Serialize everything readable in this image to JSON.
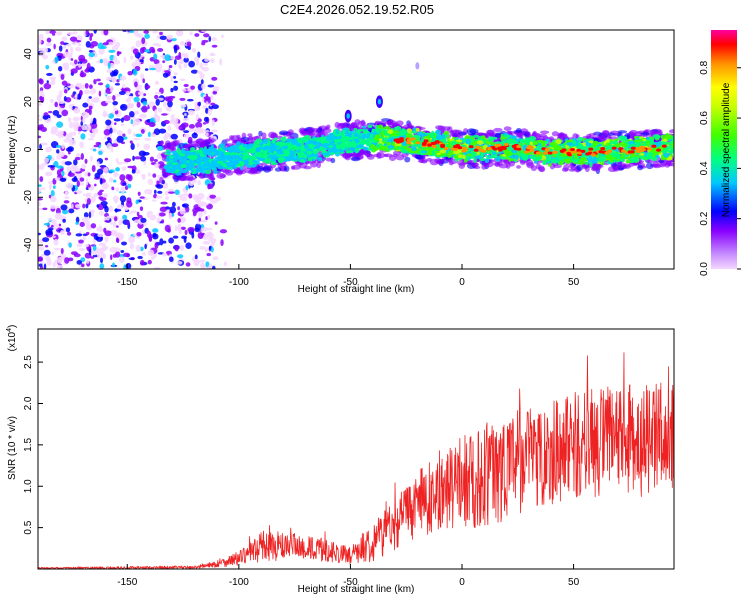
{
  "title": "C2E4.2026.052.19.52.R05",
  "chart_data": [
    {
      "type": "heatmap",
      "name": "spectrogram",
      "xlabel": "Height of straight line (km)",
      "ylabel": "Frequency (Hz)",
      "xlim": [
        -190,
        95
      ],
      "ylim": [
        -50,
        50
      ],
      "xticks": [
        -150,
        -100,
        -50,
        0,
        50
      ],
      "yticks": [
        -40,
        -20,
        0,
        20,
        40
      ],
      "noise_region": [
        -190,
        -110
      ],
      "ridge_center_hz": [
        [
          -130,
          -5
        ],
        [
          -110,
          -4
        ],
        [
          -90,
          -1
        ],
        [
          -70,
          0
        ],
        [
          -55,
          3
        ],
        [
          -40,
          5
        ],
        [
          -30,
          4
        ],
        [
          -10,
          2
        ],
        [
          0,
          0
        ],
        [
          20,
          1
        ],
        [
          40,
          -1
        ],
        [
          60,
          -1
        ],
        [
          80,
          0
        ],
        [
          95,
          1
        ]
      ],
      "features": [
        {
          "x": -51,
          "y": 14,
          "label": "spike"
        },
        {
          "x": -37,
          "y": 20,
          "label": "spike"
        },
        {
          "x": -20,
          "y": 35,
          "label": "dot"
        }
      ],
      "colorbar": {
        "label": "Normalized spectral amplitude",
        "range": [
          0.0,
          0.95
        ],
        "ticks": [
          0.0,
          0.2,
          0.4,
          0.6,
          0.8
        ],
        "colors": [
          "#f4d6ff",
          "#8800ff",
          "#0000ff",
          "#00c8ff",
          "#00ff80",
          "#40ff00",
          "#c8ff00",
          "#ffff00",
          "#ff9000",
          "#ff0000",
          "#ff00a0"
        ]
      }
    },
    {
      "type": "line",
      "name": "snr",
      "xlabel": "Height of straight line (km)",
      "ylabel": "SNR (10 * v/v)",
      "scale_label": "(x10",
      "scale_exponent": "4",
      "xlim": [
        -190,
        95
      ],
      "ylim": [
        0,
        2.9
      ],
      "xticks": [
        -150,
        -100,
        -50,
        0,
        50
      ],
      "yticks": [
        0.5,
        1.0,
        1.5,
        2.0,
        2.5
      ],
      "color": "#ee2222",
      "envelope": [
        {
          "x": -190,
          "mean": 0.01,
          "amp": 0.01
        },
        {
          "x": -120,
          "mean": 0.02,
          "amp": 0.02
        },
        {
          "x": -110,
          "mean": 0.06,
          "amp": 0.04
        },
        {
          "x": -100,
          "mean": 0.13,
          "amp": 0.09
        },
        {
          "x": -96,
          "mean": 0.18,
          "amp": 0.1
        },
        {
          "x": -90,
          "mean": 0.28,
          "amp": 0.2
        },
        {
          "x": -75,
          "mean": 0.27,
          "amp": 0.16
        },
        {
          "x": -60,
          "mean": 0.22,
          "amp": 0.14
        },
        {
          "x": -50,
          "mean": 0.16,
          "amp": 0.1
        },
        {
          "x": -40,
          "mean": 0.34,
          "amp": 0.25
        },
        {
          "x": -30,
          "mean": 0.55,
          "amp": 0.32
        },
        {
          "x": -20,
          "mean": 0.78,
          "amp": 0.4
        },
        {
          "x": -10,
          "mean": 0.92,
          "amp": 0.46
        },
        {
          "x": 0,
          "mean": 1.05,
          "amp": 0.55
        },
        {
          "x": 10,
          "mean": 1.12,
          "amp": 0.65
        },
        {
          "x": 20,
          "mean": 1.25,
          "amp": 0.65
        },
        {
          "x": 30,
          "mean": 1.35,
          "amp": 0.65
        },
        {
          "x": 50,
          "mean": 1.5,
          "amp": 0.65
        },
        {
          "x": 70,
          "mean": 1.55,
          "amp": 0.7
        },
        {
          "x": 95,
          "mean": 1.55,
          "amp": 0.7
        }
      ]
    }
  ]
}
